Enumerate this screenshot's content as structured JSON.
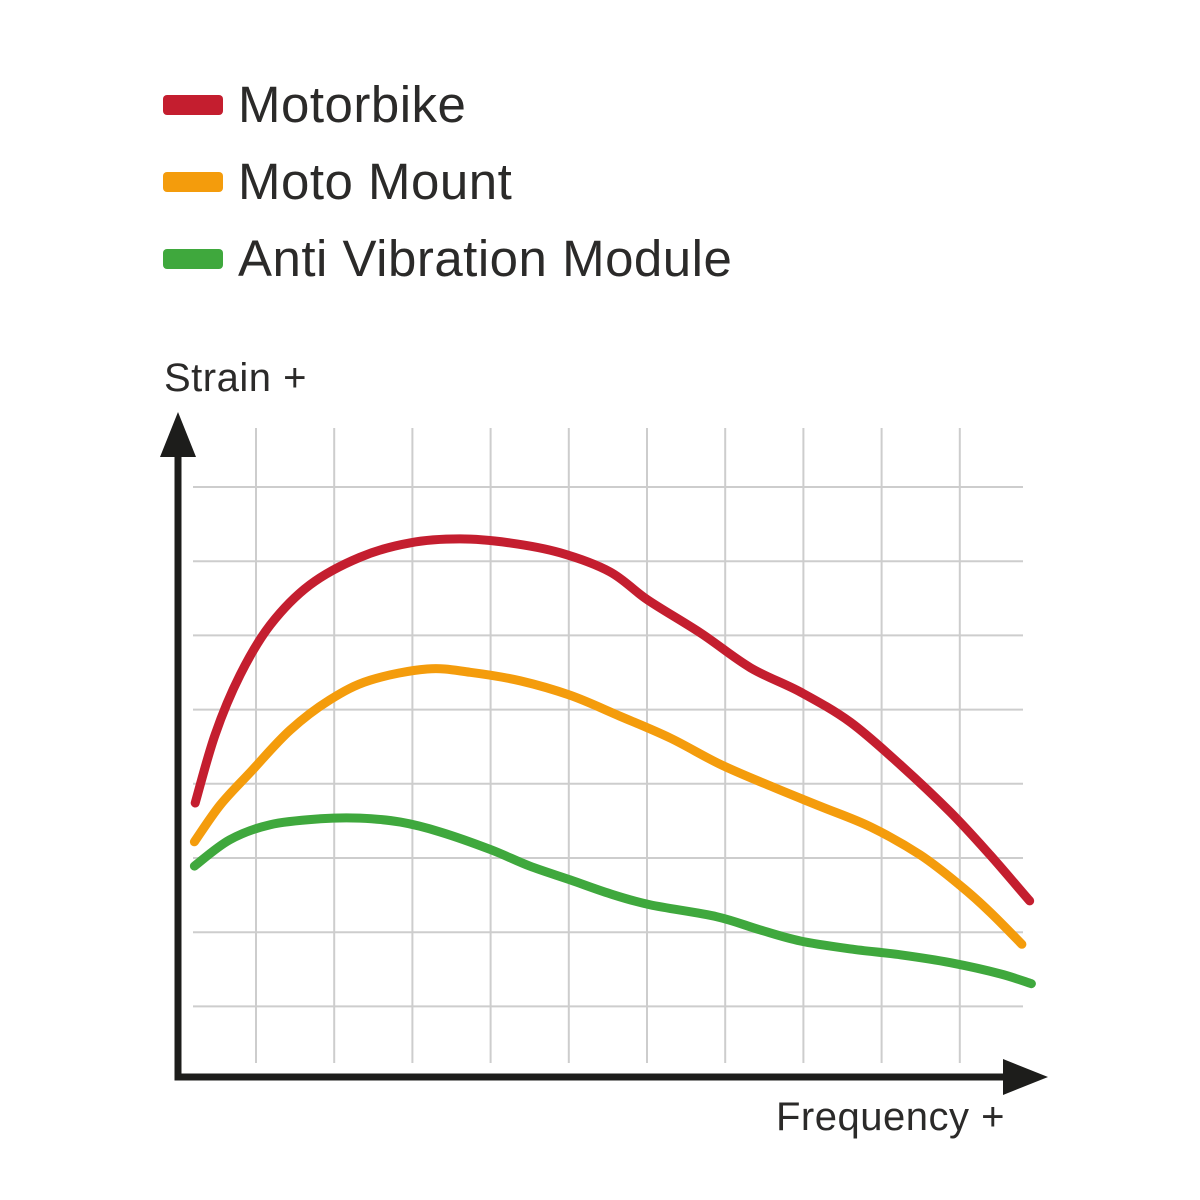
{
  "page": {
    "background_color": "#ffffff",
    "text_color": "#2b2a29"
  },
  "chart_data": {
    "type": "line",
    "title": "",
    "xlabel": "Frequency +",
    "ylabel": "Strain +",
    "x_axis": {
      "label": "Frequency +",
      "range": [
        0,
        100
      ],
      "ticks": "none",
      "unit": "relative"
    },
    "y_axis": {
      "label": "Strain +",
      "range": [
        0,
        100
      ],
      "ticks": "none",
      "unit": "relative"
    },
    "grid": {
      "on": true,
      "color": "#cdcdcd",
      "x_lines": 10,
      "y_lines": 8
    },
    "axis_color": "#1d1d1b",
    "legend_position": "top-left",
    "series": [
      {
        "name": "Motorbike",
        "color": "#c41e2f",
        "points": [
          [
            2,
            41.7
          ],
          [
            4.3,
            52.1
          ],
          [
            7.2,
            61.2
          ],
          [
            10.7,
            68.8
          ],
          [
            15.3,
            74.9
          ],
          [
            21.1,
            79.1
          ],
          [
            26.9,
            81.3
          ],
          [
            32.7,
            81.9
          ],
          [
            38.5,
            81.3
          ],
          [
            44.3,
            79.8
          ],
          [
            50.1,
            76.9
          ],
          [
            54.5,
            72.6
          ],
          [
            60.6,
            67.6
          ],
          [
            66.4,
            62.3
          ],
          [
            72.2,
            58.6
          ],
          [
            78,
            54
          ],
          [
            83.8,
            47.5
          ],
          [
            89.6,
            40.3
          ],
          [
            94.2,
            33.8
          ],
          [
            98.8,
            26.8
          ]
        ]
      },
      {
        "name": "Moto Mount",
        "color": "#f49c0c",
        "points": [
          [
            1.9,
            35.8
          ],
          [
            4.9,
            41.4
          ],
          [
            8.4,
            46.4
          ],
          [
            13,
            52.8
          ],
          [
            17.6,
            57.4
          ],
          [
            22.3,
            60.4
          ],
          [
            28.9,
            62.1
          ],
          [
            33.9,
            61.6
          ],
          [
            39.7,
            60.3
          ],
          [
            45.5,
            58.1
          ],
          [
            51.3,
            54.9
          ],
          [
            57.1,
            51.6
          ],
          [
            62.9,
            47.6
          ],
          [
            68.7,
            44.3
          ],
          [
            74.5,
            41.2
          ],
          [
            80.3,
            38.1
          ],
          [
            86.1,
            33.8
          ],
          [
            90.7,
            29.2
          ],
          [
            94.2,
            25.1
          ],
          [
            97.9,
            20.2
          ]
        ]
      },
      {
        "name": "Anti Vibration Module",
        "color": "#3fa83d",
        "points": [
          [
            1.9,
            32.1
          ],
          [
            6,
            36.1
          ],
          [
            10.7,
            38.4
          ],
          [
            16.5,
            39.3
          ],
          [
            21.1,
            39.4
          ],
          [
            25.8,
            38.8
          ],
          [
            30.4,
            37.3
          ],
          [
            36.3,
            34.6
          ],
          [
            40.8,
            32.1
          ],
          [
            45.5,
            30
          ],
          [
            50.1,
            27.9
          ],
          [
            54.8,
            26.2
          ],
          [
            62.5,
            24.4
          ],
          [
            67.5,
            22.4
          ],
          [
            72.2,
            20.7
          ],
          [
            78,
            19.5
          ],
          [
            83.8,
            18.6
          ],
          [
            89.6,
            17.4
          ],
          [
            95.4,
            15.7
          ],
          [
            99,
            14.2
          ]
        ]
      }
    ]
  }
}
